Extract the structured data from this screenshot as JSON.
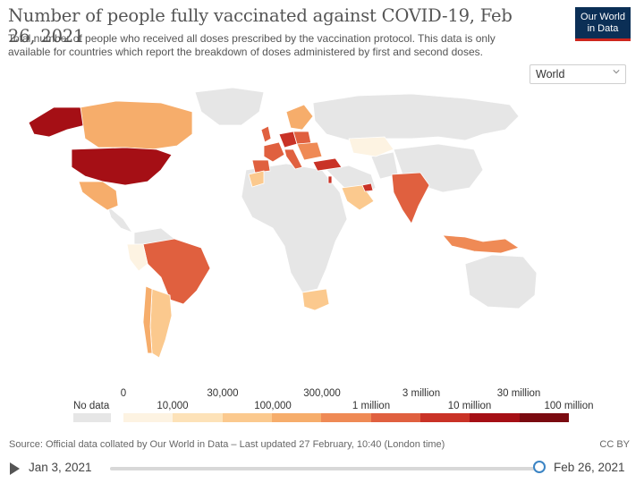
{
  "header": {
    "title": "Number of people fully vaccinated against COVID-19, Feb 26, 2021",
    "subtitle": "Total number of people who received all doses prescribed by the vaccination protocol. This data is only available for countries which report the breakdown of doses administered by first and second doses.",
    "logo_line1": "Our World",
    "logo_line2": "in Data"
  },
  "selector": {
    "value": "World",
    "icon": "chevron-down-icon"
  },
  "legend": {
    "no_data_label": "No data",
    "top_ticks": [
      "0",
      "30,000",
      "300,000",
      "3 million",
      "30 million"
    ],
    "bottom_ticks": [
      "10,000",
      "100,000",
      "1 million",
      "10 million",
      "100 million"
    ],
    "colors": [
      "#fdf3e2",
      "#fde2b8",
      "#fbc98e",
      "#f6ad6b",
      "#ef8a55",
      "#e0603f",
      "#c93226",
      "#a50f15",
      "#7a0a10"
    ],
    "no_data_color": "#e6e6e6"
  },
  "countries": [
    {
      "name": "United States",
      "color": "#a50f15"
    },
    {
      "name": "Canada",
      "color": "#f6ad6b"
    },
    {
      "name": "Mexico",
      "color": "#f6ad6b"
    },
    {
      "name": "Brazil",
      "color": "#e0603f"
    },
    {
      "name": "Argentina",
      "color": "#fbc98e"
    },
    {
      "name": "Chile",
      "color": "#f6ad6b"
    },
    {
      "name": "United Kingdom",
      "color": "#e0603f"
    },
    {
      "name": "Germany",
      "color": "#c93226"
    },
    {
      "name": "France",
      "color": "#e0603f"
    },
    {
      "name": "Spain",
      "color": "#e0603f"
    },
    {
      "name": "Italy",
      "color": "#e0603f"
    },
    {
      "name": "Poland",
      "color": "#e0603f"
    },
    {
      "name": "Turkey",
      "color": "#c93226"
    },
    {
      "name": "Russia",
      "color": "#e6e6e6"
    },
    {
      "name": "Kazakhstan",
      "color": "#fdf3e2"
    },
    {
      "name": "India",
      "color": "#e0603f"
    },
    {
      "name": "Indonesia",
      "color": "#ef8a55"
    },
    {
      "name": "South Africa",
      "color": "#fbc98e"
    },
    {
      "name": "Morocco",
      "color": "#fbc98e"
    },
    {
      "name": "Saudi Arabia",
      "color": "#fbc98e"
    },
    {
      "name": "United Arab Emirates",
      "color": "#c93226"
    },
    {
      "name": "Israel",
      "color": "#c93226"
    },
    {
      "name": "Alaska",
      "color": "#a50f15"
    }
  ],
  "footer": {
    "source": "Source: Official data collated by Our World in Data – Last updated 27 February, 10:40 (London time)",
    "license": "CC BY"
  },
  "timeline": {
    "start": "Jan 3, 2021",
    "end": "Feb 26, 2021"
  }
}
